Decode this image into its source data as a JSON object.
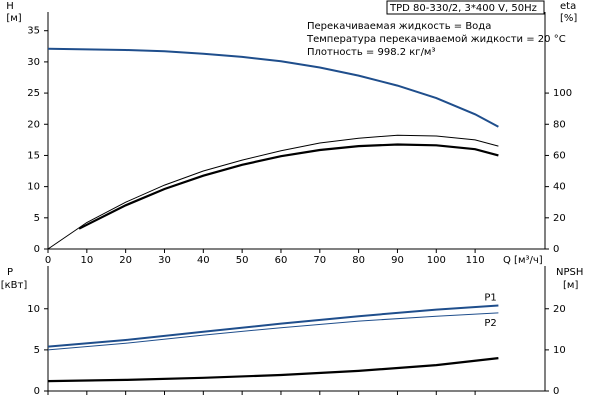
{
  "chart_data": [
    {
      "type": "line",
      "title": "TPD 80-330/2, 3*400 V, 50Hz",
      "annotations": [
        "Перекачиваемая жидкость = Вода",
        "Температура перекачиваемой жидкости = 20 °C",
        "Плотность = 998.2 кг/м³"
      ],
      "x_label": "Q [м³/ч]",
      "y_label": "H",
      "y_unit": "[м]",
      "y2_label": "eta",
      "y2_unit": "[%]",
      "xlim": [
        0,
        128
      ],
      "xticks": [
        0,
        10,
        20,
        30,
        40,
        50,
        60,
        70,
        80,
        90,
        100,
        110
      ],
      "ylim": [
        0,
        38
      ],
      "yticks": [
        0,
        5,
        10,
        15,
        20,
        25,
        30,
        35
      ],
      "y2lim": [
        0,
        152
      ],
      "y2ticks": [
        0,
        20,
        40,
        60,
        80,
        100
      ],
      "show_xtick_labels": true,
      "series": [
        {
          "color": "#1f4e8c",
          "line_width": 2,
          "x": [
            0,
            10,
            20,
            30,
            40,
            50,
            60,
            70,
            80,
            90,
            100,
            110,
            116
          ],
          "values": [
            32.1,
            32,
            31.9,
            31.7,
            31.3,
            30.8,
            30.1,
            29.1,
            27.8,
            26.2,
            24.2,
            21.6,
            19.6
          ]
        },
        {
          "color": "#000000",
          "line_width": 1,
          "axis": "y2",
          "x": [
            0,
            10,
            20,
            30,
            40,
            50,
            60,
            70,
            80,
            90,
            100,
            110,
            116
          ],
          "values": [
            0,
            17,
            30,
            41,
            50,
            57,
            63,
            68,
            71,
            73,
            72.5,
            70,
            66
          ]
        },
        {
          "color": "#000000",
          "line_width": 2.2,
          "axis": "y2",
          "x": [
            8,
            10,
            20,
            30,
            40,
            50,
            60,
            70,
            80,
            90,
            100,
            110,
            116
          ],
          "values": [
            13,
            15.5,
            28,
            38.5,
            47,
            54,
            59.5,
            63.5,
            66,
            67,
            66.5,
            64,
            60
          ]
        }
      ]
    },
    {
      "type": "line",
      "y_label": "P",
      "y_unit": "[кВт]",
      "y2_label": "NPSH",
      "y2_unit": "[м]",
      "xlim": [
        0,
        128
      ],
      "xticks": [
        0,
        10,
        20,
        30,
        40,
        50,
        60,
        70,
        80,
        90,
        100,
        110
      ],
      "ylim": [
        0,
        15.2
      ],
      "yticks": [
        0,
        5,
        10
      ],
      "y2lim": [
        0,
        30.4
      ],
      "y2ticks": [
        0,
        10,
        20
      ],
      "show_xtick_labels": false,
      "series": [
        {
          "name": "P1",
          "color": "#1f4e8c",
          "line_width": 2,
          "x": [
            0,
            20,
            40,
            60,
            80,
            100,
            116
          ],
          "values": [
            5.4,
            6.2,
            7.2,
            8.2,
            9.1,
            9.9,
            10.4
          ]
        },
        {
          "name": "P2",
          "color": "#1f4e8c",
          "line_width": 1,
          "x": [
            0,
            20,
            40,
            60,
            80,
            100,
            116
          ],
          "values": [
            5.0,
            5.8,
            6.8,
            7.7,
            8.5,
            9.1,
            9.5
          ]
        },
        {
          "color": "#000000",
          "line_width": 2.2,
          "axis": "y2",
          "x": [
            0,
            20,
            40,
            60,
            80,
            100,
            116
          ],
          "values": [
            2.4,
            2.7,
            3.2,
            3.9,
            4.9,
            6.3,
            8.0
          ]
        }
      ]
    }
  ]
}
